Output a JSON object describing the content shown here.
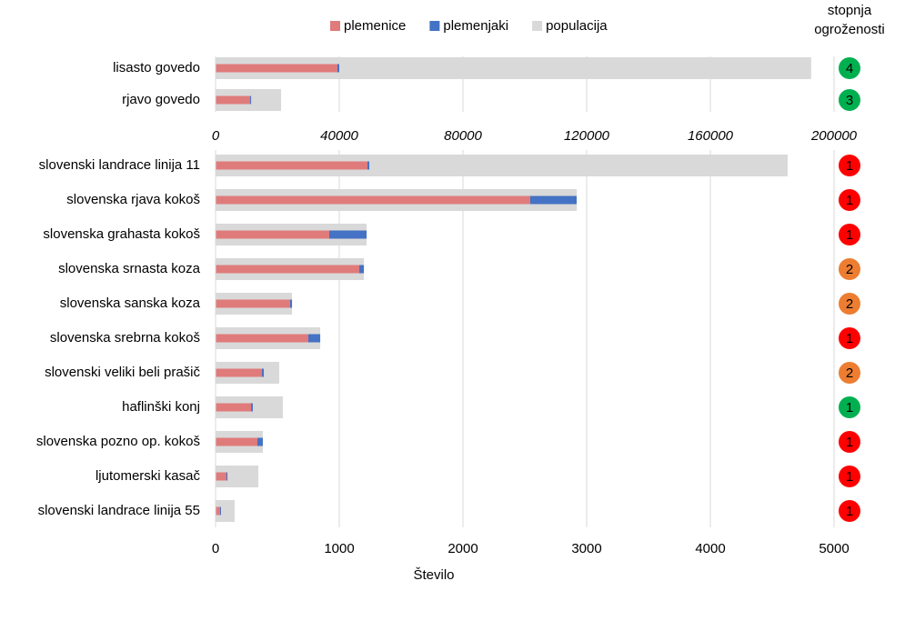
{
  "chart_data": [
    {
      "type": "bar",
      "risk_title": [
        "stopnja",
        "ogroženosti"
      ],
      "categories": [
        "lisasto govedo",
        "rjavo govedo"
      ],
      "series": [
        {
          "name": "plemenice",
          "color": "#e07b7b",
          "values": [
            39400,
            11200
          ]
        },
        {
          "name": "plemenjaki",
          "color": "#4472c4",
          "values": [
            600,
            300
          ]
        },
        {
          "name": "populacija",
          "color": "#d9d9d9",
          "values": [
            192600,
            21200
          ]
        }
      ],
      "risk": [
        4,
        3
      ],
      "risk_colors": [
        "#00b050",
        "#00b050"
      ],
      "xlim": [
        0,
        200000
      ],
      "xticks": [
        0,
        40000,
        80000,
        120000,
        160000,
        200000
      ],
      "grid": true
    },
    {
      "type": "bar",
      "categories": [
        "slovenski landrace linija 11",
        "slovenska rjava kokoš",
        "slovenska grahasta kokoš",
        "slovenska srnasta koza",
        "slovenska sanska koza",
        "slovenska srebrna kokoš",
        "slovenski veliki beli prašič",
        "haflinški konj",
        "slovenska pozno op. kokoš",
        "ljutomerski kasač",
        "slovenski landrace linija 55"
      ],
      "series": [
        {
          "color": "#e07b7b",
          "values": [
            1228,
            2544,
            919,
            1162,
            603,
            750,
            375,
            287,
            338,
            88,
            37
          ]
        },
        {
          "color": "#4472c4",
          "values": [
            15,
            375,
            302,
            37,
            15,
            96,
            15,
            14,
            44,
            8,
            7
          ]
        },
        {
          "color": "#d9d9d9",
          "values": [
            4625,
            2920,
            1221,
            1199,
            618,
            846,
            515,
            544,
            382,
            346,
            154
          ]
        }
      ],
      "risk": [
        1,
        1,
        1,
        2,
        2,
        1,
        2,
        1,
        1,
        1,
        1
      ],
      "risk_colors": [
        "#ff0000",
        "#ff0000",
        "#ff0000",
        "#ed7d31",
        "#ed7d31",
        "#ff0000",
        "#ed7d31",
        "#00b050",
        "#ff0000",
        "#ff0000",
        "#ff0000"
      ],
      "xlim": [
        0,
        5000
      ],
      "xticks": [
        0,
        1000,
        2000,
        3000,
        4000,
        5000
      ],
      "xlabel": "Število",
      "grid": true
    }
  ]
}
